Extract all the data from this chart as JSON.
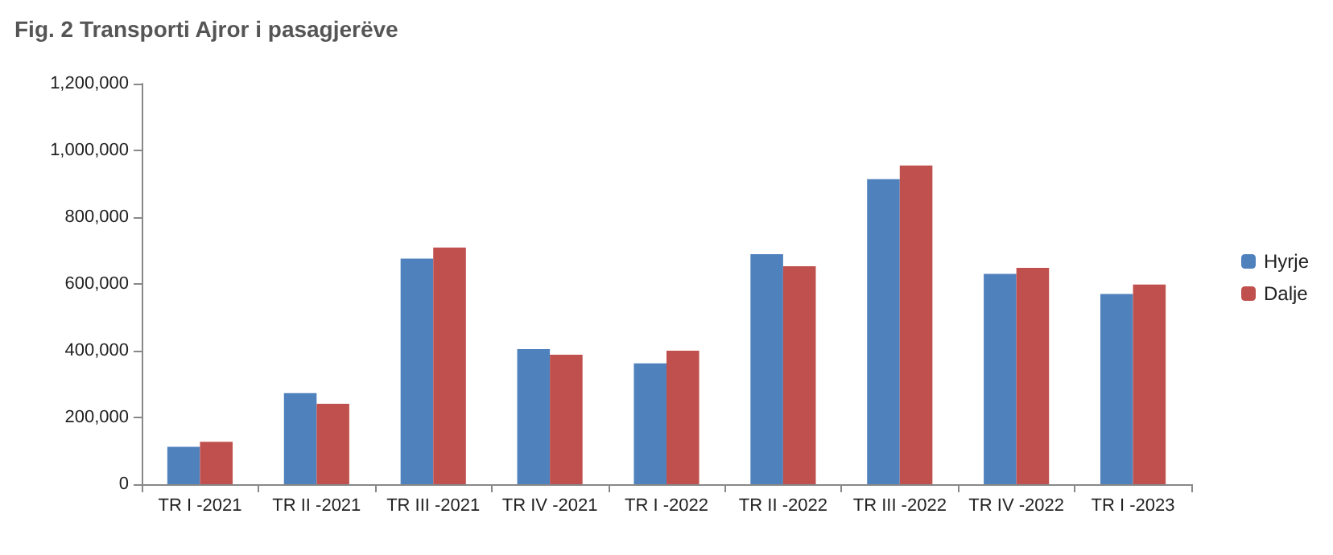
{
  "chart_data": {
    "type": "bar",
    "title": "Fig. 2 Transporti Ajror i pasagjerëve",
    "categories": [
      "TR I -2021",
      "TR II -2021",
      "TR III -2021",
      "TR IV -2021",
      "TR I -2022",
      "TR II -2022",
      "TR III -2022",
      "TR IV -2022",
      "TR I -2023"
    ],
    "series": [
      {
        "name": "Hyrje",
        "color": "#4f81bd",
        "values": [
          112000,
          273000,
          676000,
          405000,
          362000,
          689000,
          914000,
          630000,
          570000
        ]
      },
      {
        "name": "Dalje",
        "color": "#c0504d",
        "values": [
          127000,
          241000,
          709000,
          388000,
          400000,
          653000,
          955000,
          648000,
          598000
        ]
      }
    ],
    "ylim": [
      0,
      1200000
    ],
    "yticks": [
      {
        "value": 0,
        "label": "0"
      },
      {
        "value": 200000,
        "label": "200,000"
      },
      {
        "value": 400000,
        "label": "400,000"
      },
      {
        "value": 600000,
        "label": "600,000"
      },
      {
        "value": 800000,
        "label": "800,000"
      },
      {
        "value": 1000000,
        "label": "1,000,000"
      },
      {
        "value": 1200000,
        "label": "1,200,000"
      }
    ],
    "grid": false,
    "legend": "right"
  }
}
